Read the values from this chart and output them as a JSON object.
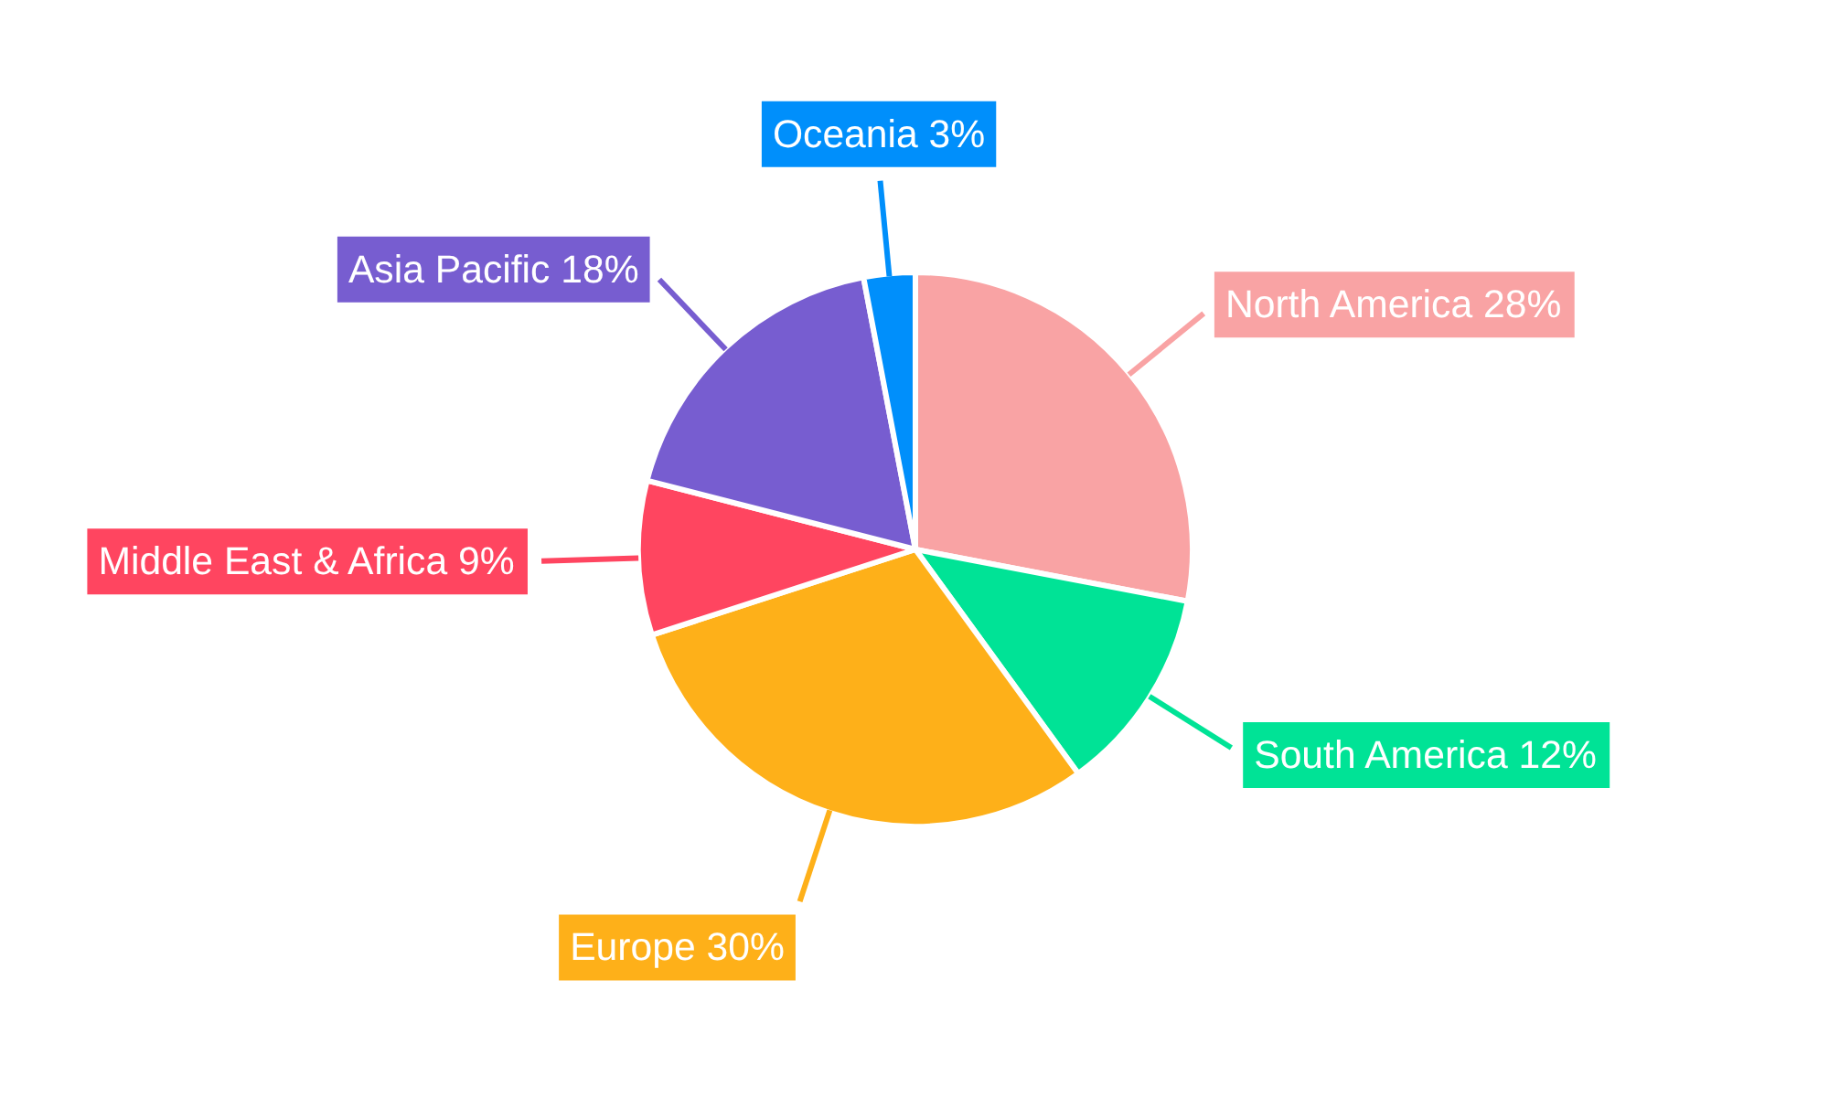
{
  "chart_data": {
    "type": "pie",
    "categories": [
      "North America",
      "South America",
      "Europe",
      "Middle East & Africa",
      "Asia Pacific",
      "Oceania"
    ],
    "values": [
      28,
      12,
      30,
      9,
      18,
      3
    ],
    "value_labels": [
      "28%",
      "12%",
      "30%",
      "9%",
      "18%",
      "3%"
    ],
    "colors": [
      "#f9a3a4",
      "#00e396",
      "#feb019",
      "#ff4560",
      "#775dd0",
      "#008ffb"
    ]
  }
}
